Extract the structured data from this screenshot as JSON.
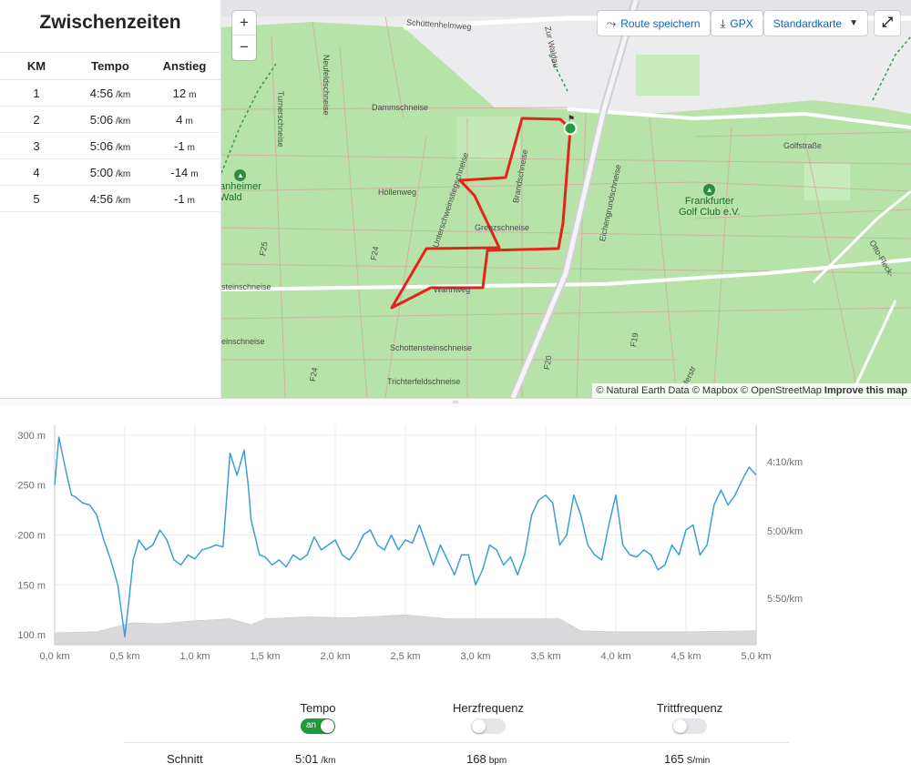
{
  "splits": {
    "title": "Zwischenzeiten",
    "headers": [
      "KM",
      "Tempo",
      "Anstieg"
    ],
    "rows": [
      {
        "km": "1",
        "pace": "4:56",
        "pace_unit": "/km",
        "elev": "12",
        "elev_unit": "m"
      },
      {
        "km": "2",
        "pace": "5:06",
        "pace_unit": "/km",
        "elev": "4",
        "elev_unit": "m"
      },
      {
        "km": "3",
        "pace": "5:06",
        "pace_unit": "/km",
        "elev": "-1",
        "elev_unit": "m"
      },
      {
        "km": "4",
        "pace": "5:00",
        "pace_unit": "/km",
        "elev": "-14",
        "elev_unit": "m"
      },
      {
        "km": "5",
        "pace": "4:56",
        "pace_unit": "/km",
        "elev": "-1",
        "elev_unit": "m"
      }
    ]
  },
  "map": {
    "zoom_in": "+",
    "zoom_out": "−",
    "save_route": "Route speichern",
    "gpx": "GPX",
    "map_style": "Standardkarte",
    "attribution": "© Natural Earth Data © Mapbox © OpenStreetMap",
    "improve": "Improve this map",
    "labels": {
      "schuettenhelmweg": "Schüttenhelmweg",
      "zur_waldau": "Zur Waldau",
      "dammschneise": "Dammschneise",
      "neufeldschneise": "Neufeldschneise",
      "turnerschneise": "Turnerschneise",
      "hoellenweg": "Höllenweg",
      "grenzschneise": "Grenzschneise",
      "unterschweinstiegschneise": "Unterschweinstiegschneise",
      "brandschneise": "Brandschneise",
      "golfstrasse": "Golfstraße",
      "eichengrundschneise": "Eichengrundschneise",
      "warthweg": "Warthweg",
      "steinschneise": "steinschneise",
      "einschneise": "einschneise",
      "schottensteinschneise": "Schottensteinschneise",
      "trichterfeldschneise": "Trichterfeldschneise",
      "f25": "F25",
      "f24a": "F24",
      "f24b": "F24",
      "f20": "F20",
      "f19": "F19",
      "otto_fleck": "Otto-Fleck-",
      "lieferstr": "Lieferstr",
      "wald": "anheimer\nWald",
      "golfclub": "Frankfurter\nGolf Club e.V."
    }
  },
  "chart_data": {
    "type": "line",
    "x_unit": "km",
    "x_ticks": [
      "0,0 km",
      "0,5 km",
      "1,0 km",
      "1,5 km",
      "2,0 km",
      "2,5 km",
      "3,0 km",
      "3,5 km",
      "4,0 km",
      "4,5 km",
      "5,0 km"
    ],
    "xlim": [
      0,
      5.0
    ],
    "left_axis": {
      "label": "elevation",
      "ticks": [
        "300 m",
        "250 m",
        "200 m",
        "150 m",
        "100 m"
      ],
      "ylim": [
        90,
        310
      ]
    },
    "right_axis": {
      "ticks": [
        "4:10/km",
        "5:00/km",
        "5:50/km"
      ]
    },
    "series": [
      {
        "kind": "area",
        "color": "#d9d9dc",
        "x": [
          0,
          0.3,
          0.55,
          0.75,
          1.0,
          1.25,
          1.4,
          1.5,
          1.8,
          2.1,
          2.5,
          2.8,
          3.3,
          3.6,
          3.75,
          4.0,
          4.5,
          5.0
        ],
        "values": [
          102,
          103,
          112,
          111,
          114,
          116,
          110,
          116,
          118,
          117,
          120,
          116,
          116,
          116,
          104,
          103,
          103,
          104
        ]
      },
      {
        "kind": "line",
        "color": "#3a9fd6",
        "x": [
          0,
          0.03,
          0.06,
          0.09,
          0.12,
          0.15,
          0.2,
          0.25,
          0.3,
          0.35,
          0.4,
          0.45,
          0.5,
          0.53,
          0.56,
          0.6,
          0.65,
          0.7,
          0.75,
          0.8,
          0.85,
          0.9,
          0.95,
          1.0,
          1.05,
          1.1,
          1.15,
          1.2,
          1.25,
          1.3,
          1.35,
          1.38,
          1.4,
          1.43,
          1.46,
          1.5,
          1.55,
          1.6,
          1.65,
          1.7,
          1.75,
          1.8,
          1.85,
          1.9,
          1.95,
          2.0,
          2.05,
          2.1,
          2.15,
          2.2,
          2.25,
          2.3,
          2.35,
          2.4,
          2.45,
          2.5,
          2.55,
          2.6,
          2.65,
          2.7,
          2.75,
          2.8,
          2.85,
          2.9,
          2.95,
          3.0,
          3.05,
          3.1,
          3.15,
          3.2,
          3.25,
          3.3,
          3.35,
          3.4,
          3.45,
          3.5,
          3.55,
          3.6,
          3.65,
          3.7,
          3.75,
          3.8,
          3.85,
          3.9,
          3.95,
          4.0,
          4.05,
          4.1,
          4.15,
          4.2,
          4.25,
          4.3,
          4.35,
          4.4,
          4.45,
          4.5,
          4.55,
          4.6,
          4.65,
          4.7,
          4.75,
          4.8,
          4.85,
          4.9,
          4.95,
          5.0
        ],
        "values": [
          250,
          298,
          278,
          258,
          240,
          238,
          232,
          230,
          220,
          195,
          175,
          150,
          98,
          135,
          175,
          195,
          185,
          190,
          205,
          195,
          175,
          170,
          180,
          176,
          185,
          187,
          190,
          188,
          282,
          260,
          285,
          250,
          215,
          198,
          180,
          178,
          170,
          175,
          168,
          180,
          175,
          180,
          198,
          185,
          190,
          195,
          180,
          175,
          185,
          200,
          205,
          190,
          185,
          200,
          185,
          195,
          192,
          210,
          190,
          170,
          190,
          175,
          160,
          180,
          180,
          150,
          165,
          190,
          185,
          170,
          178,
          160,
          180,
          220,
          235,
          240,
          232,
          190,
          200,
          240,
          220,
          190,
          180,
          175,
          210,
          240,
          190,
          180,
          178,
          185,
          180,
          165,
          170,
          190,
          180,
          205,
          210,
          180,
          190,
          230,
          245,
          230,
          240,
          255,
          268,
          260
        ]
      }
    ]
  },
  "metrics": {
    "toggles": [
      {
        "label": "Tempo",
        "state": "on",
        "state_label": "an"
      },
      {
        "label": "Herzfrequenz",
        "state": "off"
      },
      {
        "label": "Trittfrequenz",
        "state": "off"
      }
    ],
    "avg_label": "Schnitt",
    "avg_pace": "5:01",
    "avg_pace_unit": "/km",
    "avg_hr": "168",
    "avg_hr_unit": "bpm",
    "avg_cad": "165",
    "avg_cad_unit": "S/min"
  },
  "colors": {
    "route": "#e0261c",
    "pace_line": "#3a9fd6",
    "elevation_area": "#d9d9dc",
    "toggle_on": "#1e9a3c",
    "accent_link": "#0a66b7"
  }
}
